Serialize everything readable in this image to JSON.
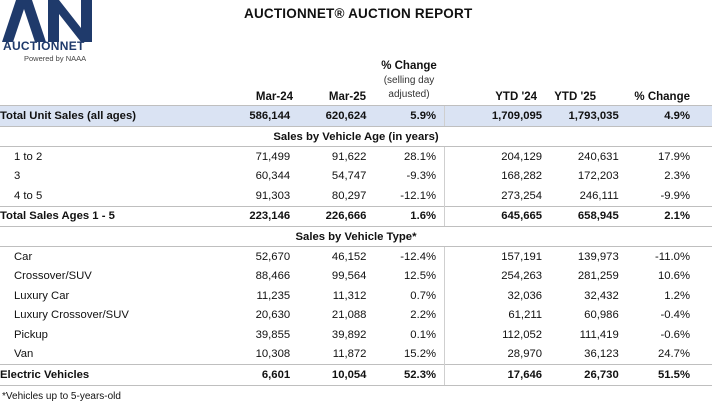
{
  "logo": {
    "mark": "AN",
    "name": "AUCTIONNET",
    "tagline": "Powered by NAAA"
  },
  "title": "AUCTIONNET® AUCTION REPORT",
  "headers": {
    "mar24": "Mar-24",
    "mar25": "Mar-25",
    "pct_change": "% Change",
    "pct_note_1": "(selling day",
    "pct_note_2": "adjusted)",
    "ytd24": "YTD '24",
    "ytd25": "YTD '25",
    "pct_change_ytd": "% Change"
  },
  "total_unit_sales": [
    "Total Unit Sales (all ages)",
    "586,144",
    "620,624",
    "5.9%",
    "1,709,095",
    "1,793,035",
    "4.9%"
  ],
  "age_section": "Sales by Vehicle Age (in years)",
  "age_rows": [
    [
      "1 to 2",
      "71,499",
      "91,622",
      "28.1%",
      "204,129",
      "240,631",
      "17.9%"
    ],
    [
      "3",
      "60,344",
      "54,747",
      "-9.3%",
      "168,282",
      "172,203",
      "2.3%"
    ],
    [
      "4 to 5",
      "91,303",
      "80,297",
      "-12.1%",
      "273,254",
      "246,111",
      "-9.9%"
    ]
  ],
  "total_ages": [
    "Total Sales Ages 1 - 5",
    "223,146",
    "226,666",
    "1.6%",
    "645,665",
    "658,945",
    "2.1%"
  ],
  "type_section": "Sales by Vehicle Type*",
  "type_rows": [
    [
      "Car",
      "52,670",
      "46,152",
      "-12.4%",
      "157,191",
      "139,973",
      "-11.0%"
    ],
    [
      "Crossover/SUV",
      "88,466",
      "99,564",
      "12.5%",
      "254,263",
      "281,259",
      "10.6%"
    ],
    [
      "Luxury Car",
      "11,235",
      "11,312",
      "0.7%",
      "32,036",
      "32,432",
      "1.2%"
    ],
    [
      "Luxury Crossover/SUV",
      "20,630",
      "21,088",
      "2.2%",
      "61,211",
      "60,986",
      "-0.4%"
    ],
    [
      "Pickup",
      "39,855",
      "39,892",
      "0.1%",
      "112,052",
      "111,419",
      "-0.6%"
    ],
    [
      "Van",
      "10,308",
      "11,872",
      "15.2%",
      "28,970",
      "36,123",
      "24.7%"
    ]
  ],
  "electric": [
    "Electric Vehicles",
    "6,601",
    "10,054",
    "52.3%",
    "17,646",
    "26,730",
    "51.5%"
  ],
  "footnote": "*Vehicles up to 5-years-old",
  "colors": {
    "brand_navy": "#1f3a6b",
    "highlight_row": "#dae3f3"
  }
}
